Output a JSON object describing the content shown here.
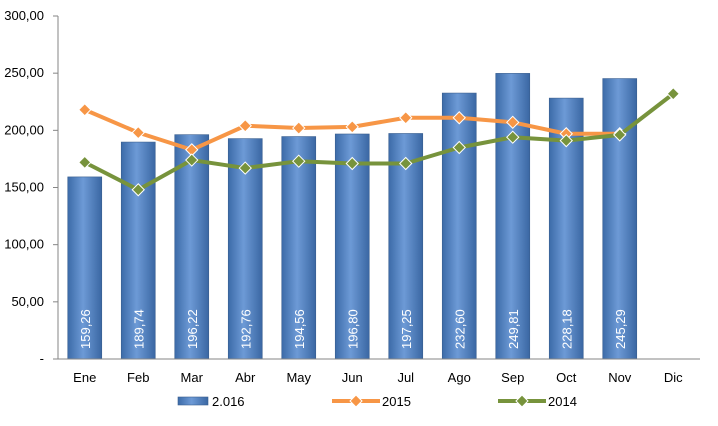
{
  "chart_data": {
    "type": "bar",
    "categories": [
      "Ene",
      "Feb",
      "Mar",
      "Abr",
      "May",
      "Jun",
      "Jul",
      "Ago",
      "Sep",
      "Oct",
      "Nov",
      "Dic"
    ],
    "ylim": [
      0,
      300
    ],
    "yticks": [
      0,
      50,
      100,
      150,
      200,
      250,
      300
    ],
    "ytick_labels": [
      "-",
      "50,00",
      "100,00",
      "150,00",
      "200,00",
      "250,00",
      "300,00"
    ],
    "grid": false,
    "legend_position": "bottom",
    "series": [
      {
        "name": "2.016",
        "type": "bar",
        "color": "#4F81BD",
        "values": [
          159.26,
          189.74,
          196.22,
          192.76,
          194.56,
          196.8,
          197.25,
          232.6,
          249.81,
          228.18,
          245.29,
          null
        ],
        "labels": [
          "159,26",
          "189,74",
          "196,22",
          "192,76",
          "194,56",
          "196,80",
          "197,25",
          "232,60",
          "249,81",
          "228,18",
          "245,29",
          ""
        ]
      },
      {
        "name": "2015",
        "type": "line",
        "color": "#F79646",
        "values": [
          218,
          198,
          183,
          204,
          202,
          203,
          211,
          211,
          207,
          197,
          197,
          null
        ]
      },
      {
        "name": "2014",
        "type": "line",
        "color": "#77933C",
        "values": [
          172,
          148,
          174,
          167,
          173,
          171,
          171,
          185,
          194,
          191,
          196,
          232
        ]
      }
    ]
  }
}
